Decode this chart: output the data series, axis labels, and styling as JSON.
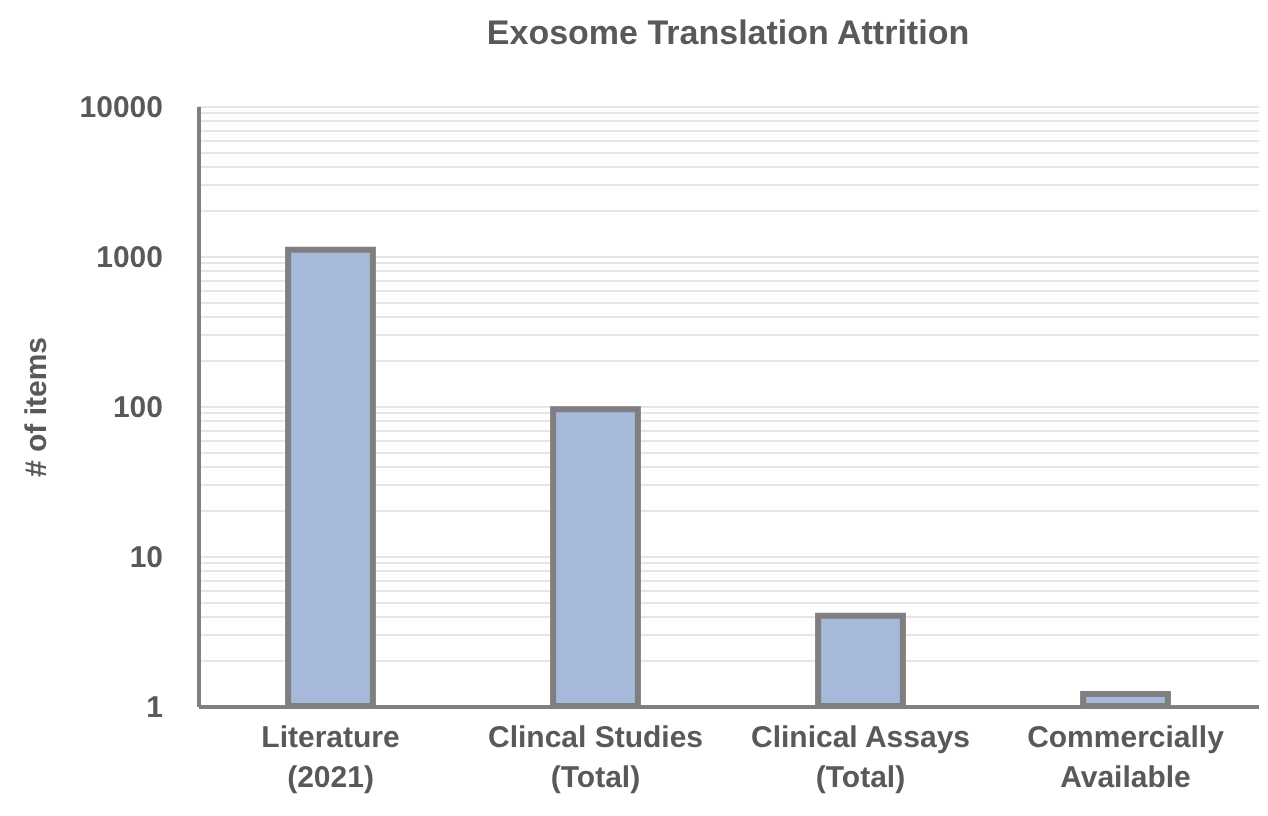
{
  "chart_data": {
    "type": "bar",
    "title": "Exosome Translation Attrition",
    "ylabel": "# of items",
    "categories": [
      "Literature (2021)",
      "Clincal Studies (Total)",
      "Clinical Assays (Total)",
      "Commercially Available"
    ],
    "values": [
      1100,
      95,
      4,
      1.2
    ],
    "color": "#a6b9db",
    "log": true,
    "ylim": [
      1,
      10000
    ],
    "yticks": [
      1,
      {
        "value": 2,
        "label": null
      },
      {
        "value": 3,
        "label": null
      },
      {
        "value": 4,
        "label": null
      },
      {
        "value": 5,
        "label": null
      },
      {
        "value": 6,
        "label": null
      },
      {
        "value": 7,
        "label": null
      },
      {
        "value": 8,
        "label": null
      },
      {
        "value": 9,
        "label": null
      },
      10,
      {
        "value": 20,
        "label": null
      },
      {
        "value": 30,
        "label": null
      },
      {
        "value": 40,
        "label": null
      },
      {
        "value": 50,
        "label": null
      },
      {
        "value": 60,
        "label": null
      },
      {
        "value": 70,
        "label": null
      },
      {
        "value": 80,
        "label": null
      },
      {
        "value": 90,
        "label": null
      },
      100,
      {
        "value": 200,
        "label": null
      },
      {
        "value": 300,
        "label": null
      },
      {
        "value": 400,
        "label": null
      },
      {
        "value": 500,
        "label": null
      },
      {
        "value": 600,
        "label": null
      },
      {
        "value": 700,
        "label": null
      },
      {
        "value": 800,
        "label": null
      },
      {
        "value": 900,
        "label": null
      },
      1000,
      {
        "value": 2000,
        "label": null
      },
      {
        "value": 3000,
        "label": null
      },
      {
        "value": 4000,
        "label": null
      },
      {
        "value": 5000,
        "label": null
      },
      {
        "value": 6000,
        "label": null
      },
      {
        "value": 7000,
        "label": null
      },
      {
        "value": 8000,
        "label": null
      },
      {
        "value": 9000,
        "label": null
      },
      10000
    ],
    "grid": true
  }
}
